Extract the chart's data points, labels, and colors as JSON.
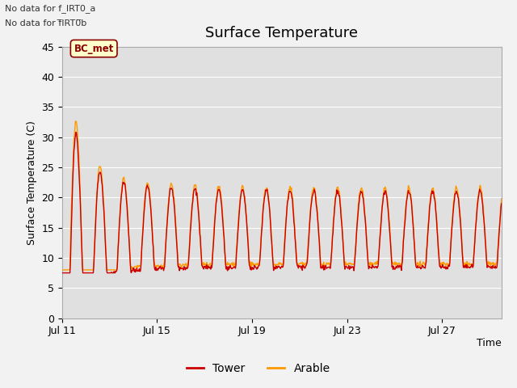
{
  "title": "Surface Temperature",
  "xlabel": "Time",
  "ylabel": "Surface Temperature (C)",
  "ylim": [
    0,
    45
  ],
  "yticks": [
    0,
    5,
    10,
    15,
    20,
    25,
    30,
    35,
    40,
    45
  ],
  "x_tick_labels": [
    "Jul 11",
    "Jul 15",
    "Jul 19",
    "Jul 23",
    "Jul 27"
  ],
  "note_line1": "No data for f_IRT0_a",
  "note_line2": "No data for f̅IRT0̅b",
  "annotation_label": "BC_met",
  "annotation_bg": "#ffffcc",
  "annotation_border": "#8b0000",
  "annotation_text_color": "#8b0000",
  "tower_color": "#cc0000",
  "arable_color": "#ff9900",
  "legend_entries": [
    "Tower",
    "Arable"
  ],
  "fig_bg": "#f2f2f2",
  "plot_bg": "#e0e0e0",
  "grid_color": "#ffffff",
  "title_fontsize": 13,
  "axis_label_fontsize": 9,
  "tick_fontsize": 9,
  "note_fontsize": 8
}
